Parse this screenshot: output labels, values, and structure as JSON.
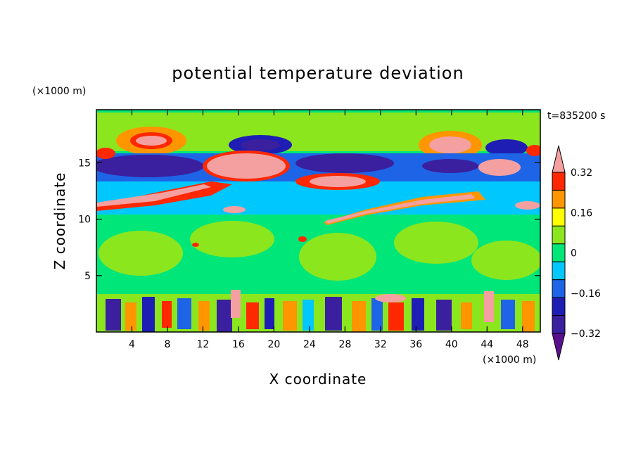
{
  "chart_data": {
    "type": "heatmap",
    "title": "potential temperature deviation",
    "xlabel": "X coordinate",
    "ylabel": "Z coordinate",
    "x_unit": "(×1000 m)",
    "y_unit": "(×1000 m)",
    "time_label": "t=835200 s",
    "xlim": [
      0,
      50
    ],
    "ylim": [
      0,
      19.7
    ],
    "x_ticks": [
      4,
      8,
      12,
      16,
      20,
      24,
      28,
      32,
      36,
      40,
      44,
      48
    ],
    "y_ticks": [
      5,
      10,
      15
    ],
    "colorbar": {
      "levels": [
        -0.4,
        -0.32,
        -0.24,
        -0.16,
        -0.08,
        0,
        0.08,
        0.16,
        0.24,
        0.32,
        0.4
      ],
      "labels": [
        "0.32",
        "0.16",
        "0",
        "−0.16",
        "−0.32"
      ],
      "label_values": [
        0.32,
        0.16,
        0,
        -0.16,
        -0.32
      ],
      "colors": [
        "#5a0f8c",
        "#3a1f9e",
        "#1e1eb4",
        "#1e64e6",
        "#00c8ff",
        "#00e678",
        "#8ce61e",
        "#ffff00",
        "#ff9600",
        "#ff2800",
        "#f4a0a0"
      ],
      "extend": "both"
    }
  }
}
